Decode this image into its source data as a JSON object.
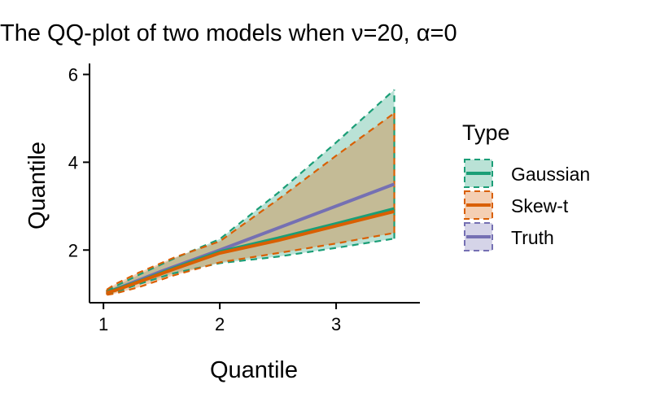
{
  "chart_data": {
    "type": "area",
    "title": "The QQ-plot of two models when ν=20, α=0",
    "xlabel": "Quantile",
    "ylabel": "Quantile",
    "xlim": [
      0.88,
      3.72
    ],
    "ylim": [
      0.8,
      6.25
    ],
    "xticks": [
      1,
      2,
      3
    ],
    "yticks": [
      2,
      4,
      6
    ],
    "grid": false,
    "legend": {
      "title": "Type",
      "position": "right"
    },
    "series": [
      {
        "name": "Gaussian",
        "color": "#1B9E77",
        "x": [
          1.03,
          1.1,
          1.3,
          1.6,
          2.0,
          2.5,
          3.0,
          3.5
        ],
        "line": [
          1.04,
          1.1,
          1.28,
          1.58,
          1.96,
          2.27,
          2.6,
          2.94
        ],
        "lower": [
          1.0,
          1.04,
          1.22,
          1.47,
          1.7,
          1.85,
          2.05,
          2.26
        ],
        "upper": [
          1.08,
          1.17,
          1.43,
          1.8,
          2.25,
          3.3,
          4.45,
          5.65
        ]
      },
      {
        "name": "Skew-t",
        "color": "#D95F02",
        "x": [
          1.03,
          1.1,
          1.3,
          1.6,
          2.0,
          2.5,
          3.0,
          3.5
        ],
        "line": [
          1.03,
          1.08,
          1.27,
          1.56,
          1.93,
          2.22,
          2.55,
          2.88
        ],
        "lower": [
          0.98,
          1.01,
          1.15,
          1.42,
          1.72,
          1.93,
          2.15,
          2.39
        ],
        "upper": [
          1.1,
          1.22,
          1.48,
          1.82,
          2.2,
          3.15,
          4.15,
          5.12
        ]
      },
      {
        "name": "Truth",
        "color": "#7570B3",
        "x": [
          1.03,
          1.5,
          2.0,
          2.5,
          3.0,
          3.5
        ],
        "line": [
          1.03,
          1.52,
          2.0,
          2.5,
          3.0,
          3.5
        ]
      }
    ]
  }
}
